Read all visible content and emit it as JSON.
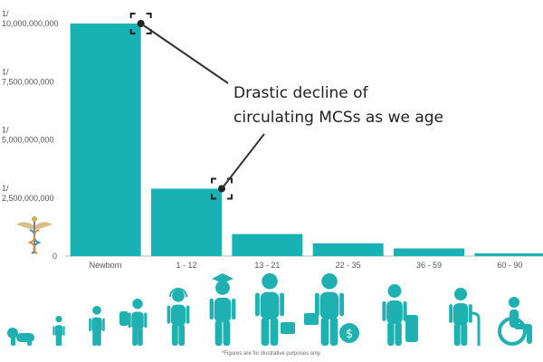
{
  "colors": {
    "bar": "#18b2b5",
    "figure": "#1fb0b2",
    "axis": "#bbbbbb",
    "text": "#555555"
  },
  "chart_data": {
    "type": "bar",
    "categories": [
      "Newborn",
      "1 - 12",
      "13 - 21",
      "22 - 35",
      "36 - 59",
      "60 - 90"
    ],
    "values": [
      10000000000,
      2900000000,
      950000000,
      550000000,
      330000000,
      120000000
    ],
    "ylim": [
      0,
      10000000000
    ],
    "yticks": [
      {
        "value": 0,
        "lines": [
          "0"
        ]
      },
      {
        "value": 2500000000,
        "lines": [
          "1/",
          "2,500,000,000"
        ]
      },
      {
        "value": 5000000000,
        "lines": [
          "1/",
          "5,000,000,000"
        ]
      },
      {
        "value": 7500000000,
        "lines": [
          "1/",
          "7,500,000,000"
        ]
      },
      {
        "value": 10000000000,
        "lines": [
          "1/",
          "10,000,000,000"
        ]
      }
    ],
    "annotation": {
      "lines": [
        "Drastic decline of",
        "circulating MCSs as we age"
      ],
      "targets": [
        0,
        1
      ]
    },
    "grid": false,
    "legend": "none"
  },
  "figures": [
    {
      "icon": "baby-crawling-icon"
    },
    {
      "icon": "toddler-icon"
    },
    {
      "icon": "child-soccer-icon"
    },
    {
      "icon": "student-backpack-icon"
    },
    {
      "icon": "teen-headphones-icon"
    },
    {
      "icon": "graduate-icon"
    },
    {
      "icon": "businessman-briefcase-icon"
    },
    {
      "icon": "businessman-money-icon"
    },
    {
      "icon": "traveler-suitcase-icon"
    },
    {
      "icon": "elderly-cane-icon"
    },
    {
      "icon": "wheelchair-icon"
    }
  ],
  "logo": {
    "icon": "caduceus-logo-icon"
  },
  "footnote": "*Figures are for illustrative purposes only."
}
